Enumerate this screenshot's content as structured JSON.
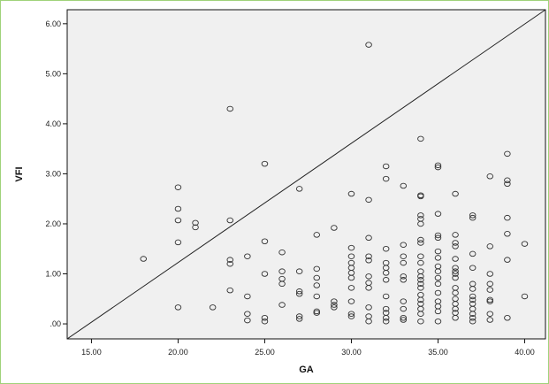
{
  "chart_data": {
    "type": "scatter",
    "title": "",
    "xlabel": "GA",
    "ylabel": "VFI",
    "xlim": [
      13.6,
      41.2
    ],
    "ylim": [
      -0.3,
      6.28
    ],
    "grid": false,
    "x_ticks": [
      15,
      20,
      25,
      30,
      35,
      40
    ],
    "x_tick_labels": [
      "15.00",
      "20.00",
      "25.00",
      "30.00",
      "35.00",
      "40.00"
    ],
    "y_ticks": [
      0,
      1,
      2,
      3,
      4,
      5,
      6
    ],
    "y_tick_labels": [
      ".00",
      "1.00",
      "2.00",
      "3.00",
      "4.00",
      "5.00",
      "6.00"
    ],
    "reference_line": {
      "type": "identity",
      "from": [
        13.6,
        -0.3
      ],
      "to": [
        41.2,
        6.28
      ]
    },
    "colors": {
      "plot_background": "#f0f0f0",
      "marker_stroke": "#333333",
      "frame_border": "#9fd27a"
    },
    "points": [
      {
        "x": 18,
        "y": 1.3
      },
      {
        "x": 20,
        "y": 2.73
      },
      {
        "x": 20,
        "y": 2.3
      },
      {
        "x": 20,
        "y": 2.07
      },
      {
        "x": 20,
        "y": 1.63
      },
      {
        "x": 20,
        "y": 0.33
      },
      {
        "x": 21,
        "y": 2.02
      },
      {
        "x": 21,
        "y": 1.93
      },
      {
        "x": 22,
        "y": 0.33
      },
      {
        "x": 23,
        "y": 4.3
      },
      {
        "x": 23,
        "y": 2.07
      },
      {
        "x": 23,
        "y": 1.28
      },
      {
        "x": 23,
        "y": 1.2
      },
      {
        "x": 23,
        "y": 0.67
      },
      {
        "x": 24,
        "y": 1.35
      },
      {
        "x": 24,
        "y": 0.55
      },
      {
        "x": 24,
        "y": 0.2
      },
      {
        "x": 24,
        "y": 0.07
      },
      {
        "x": 25,
        "y": 3.2
      },
      {
        "x": 25,
        "y": 1.65
      },
      {
        "x": 25,
        "y": 1.0
      },
      {
        "x": 25,
        "y": 0.12
      },
      {
        "x": 25,
        "y": 0.05
      },
      {
        "x": 26,
        "y": 1.43
      },
      {
        "x": 26,
        "y": 1.05
      },
      {
        "x": 26,
        "y": 0.9
      },
      {
        "x": 26,
        "y": 0.8
      },
      {
        "x": 26,
        "y": 0.38
      },
      {
        "x": 27,
        "y": 2.7
      },
      {
        "x": 27,
        "y": 1.05
      },
      {
        "x": 27,
        "y": 0.65
      },
      {
        "x": 27,
        "y": 0.6
      },
      {
        "x": 27,
        "y": 0.15
      },
      {
        "x": 27,
        "y": 0.1
      },
      {
        "x": 28,
        "y": 1.78
      },
      {
        "x": 28,
        "y": 1.1
      },
      {
        "x": 28,
        "y": 0.92
      },
      {
        "x": 28,
        "y": 0.77
      },
      {
        "x": 28,
        "y": 0.55
      },
      {
        "x": 28,
        "y": 0.25
      },
      {
        "x": 28,
        "y": 0.22
      },
      {
        "x": 29,
        "y": 1.92
      },
      {
        "x": 29,
        "y": 0.45
      },
      {
        "x": 29,
        "y": 0.38
      },
      {
        "x": 29,
        "y": 0.33
      },
      {
        "x": 30,
        "y": 2.6
      },
      {
        "x": 30,
        "y": 1.52
      },
      {
        "x": 30,
        "y": 1.35
      },
      {
        "x": 30,
        "y": 1.22
      },
      {
        "x": 30,
        "y": 1.12
      },
      {
        "x": 30,
        "y": 1.02
      },
      {
        "x": 30,
        "y": 0.92
      },
      {
        "x": 30,
        "y": 0.72
      },
      {
        "x": 30,
        "y": 0.45
      },
      {
        "x": 30,
        "y": 0.2
      },
      {
        "x": 30,
        "y": 0.15
      },
      {
        "x": 31,
        "y": 5.58
      },
      {
        "x": 31,
        "y": 2.48
      },
      {
        "x": 31,
        "y": 1.72
      },
      {
        "x": 31,
        "y": 1.35
      },
      {
        "x": 31,
        "y": 1.27
      },
      {
        "x": 31,
        "y": 0.95
      },
      {
        "x": 31,
        "y": 0.82
      },
      {
        "x": 31,
        "y": 0.72
      },
      {
        "x": 31,
        "y": 0.33
      },
      {
        "x": 31,
        "y": 0.15
      },
      {
        "x": 31,
        "y": 0.05
      },
      {
        "x": 32,
        "y": 3.15
      },
      {
        "x": 32,
        "y": 2.9
      },
      {
        "x": 32,
        "y": 1.5
      },
      {
        "x": 32,
        "y": 1.22
      },
      {
        "x": 32,
        "y": 1.12
      },
      {
        "x": 32,
        "y": 1.02
      },
      {
        "x": 32,
        "y": 0.88
      },
      {
        "x": 32,
        "y": 0.55
      },
      {
        "x": 32,
        "y": 0.3
      },
      {
        "x": 32,
        "y": 0.22
      },
      {
        "x": 32,
        "y": 0.12
      },
      {
        "x": 32,
        "y": 0.05
      },
      {
        "x": 33,
        "y": 2.76
      },
      {
        "x": 33,
        "y": 1.58
      },
      {
        "x": 33,
        "y": 1.35
      },
      {
        "x": 33,
        "y": 1.22
      },
      {
        "x": 33,
        "y": 0.95
      },
      {
        "x": 33,
        "y": 0.88
      },
      {
        "x": 33,
        "y": 0.45
      },
      {
        "x": 33,
        "y": 0.3
      },
      {
        "x": 33,
        "y": 0.12
      },
      {
        "x": 33,
        "y": 0.08
      },
      {
        "x": 34,
        "y": 3.7
      },
      {
        "x": 34,
        "y": 2.57
      },
      {
        "x": 34,
        "y": 2.55
      },
      {
        "x": 34,
        "y": 2.17
      },
      {
        "x": 34,
        "y": 2.1
      },
      {
        "x": 34,
        "y": 2.0
      },
      {
        "x": 34,
        "y": 1.68
      },
      {
        "x": 34,
        "y": 1.62
      },
      {
        "x": 34,
        "y": 1.35
      },
      {
        "x": 34,
        "y": 1.22
      },
      {
        "x": 34,
        "y": 1.05
      },
      {
        "x": 34,
        "y": 0.95
      },
      {
        "x": 34,
        "y": 0.88
      },
      {
        "x": 34,
        "y": 0.8
      },
      {
        "x": 34,
        "y": 0.72
      },
      {
        "x": 34,
        "y": 0.58
      },
      {
        "x": 34,
        "y": 0.48
      },
      {
        "x": 34,
        "y": 0.4
      },
      {
        "x": 34,
        "y": 0.3
      },
      {
        "x": 34,
        "y": 0.2
      },
      {
        "x": 34,
        "y": 0.05
      },
      {
        "x": 35,
        "y": 3.17
      },
      {
        "x": 35,
        "y": 3.13
      },
      {
        "x": 35,
        "y": 2.2
      },
      {
        "x": 35,
        "y": 1.77
      },
      {
        "x": 35,
        "y": 1.72
      },
      {
        "x": 35,
        "y": 1.45
      },
      {
        "x": 35,
        "y": 1.32
      },
      {
        "x": 35,
        "y": 1.15
      },
      {
        "x": 35,
        "y": 1.05
      },
      {
        "x": 35,
        "y": 0.92
      },
      {
        "x": 35,
        "y": 0.8
      },
      {
        "x": 35,
        "y": 0.62
      },
      {
        "x": 35,
        "y": 0.45
      },
      {
        "x": 35,
        "y": 0.35
      },
      {
        "x": 35,
        "y": 0.25
      },
      {
        "x": 35,
        "y": 0.05
      },
      {
        "x": 36,
        "y": 2.6
      },
      {
        "x": 36,
        "y": 1.78
      },
      {
        "x": 36,
        "y": 1.62
      },
      {
        "x": 36,
        "y": 1.55
      },
      {
        "x": 36,
        "y": 1.3
      },
      {
        "x": 36,
        "y": 1.12
      },
      {
        "x": 36,
        "y": 1.05
      },
      {
        "x": 36,
        "y": 1.0
      },
      {
        "x": 36,
        "y": 0.92
      },
      {
        "x": 36,
        "y": 0.72
      },
      {
        "x": 36,
        "y": 0.62
      },
      {
        "x": 36,
        "y": 0.5
      },
      {
        "x": 36,
        "y": 0.4
      },
      {
        "x": 36,
        "y": 0.3
      },
      {
        "x": 36,
        "y": 0.22
      },
      {
        "x": 36,
        "y": 0.12
      },
      {
        "x": 37,
        "y": 2.17
      },
      {
        "x": 37,
        "y": 2.12
      },
      {
        "x": 37,
        "y": 1.4
      },
      {
        "x": 37,
        "y": 1.12
      },
      {
        "x": 37,
        "y": 0.8
      },
      {
        "x": 37,
        "y": 0.7
      },
      {
        "x": 37,
        "y": 0.55
      },
      {
        "x": 37,
        "y": 0.48
      },
      {
        "x": 37,
        "y": 0.4
      },
      {
        "x": 37,
        "y": 0.3
      },
      {
        "x": 37,
        "y": 0.2
      },
      {
        "x": 37,
        "y": 0.12
      },
      {
        "x": 37,
        "y": 0.05
      },
      {
        "x": 38,
        "y": 2.95
      },
      {
        "x": 38,
        "y": 1.55
      },
      {
        "x": 38,
        "y": 1.0
      },
      {
        "x": 38,
        "y": 0.8
      },
      {
        "x": 38,
        "y": 0.68
      },
      {
        "x": 38,
        "y": 0.48
      },
      {
        "x": 38,
        "y": 0.45
      },
      {
        "x": 38,
        "y": 0.2
      },
      {
        "x": 38,
        "y": 0.08
      },
      {
        "x": 39,
        "y": 3.4
      },
      {
        "x": 39,
        "y": 2.87
      },
      {
        "x": 39,
        "y": 2.8
      },
      {
        "x": 39,
        "y": 2.12
      },
      {
        "x": 39,
        "y": 1.8
      },
      {
        "x": 39,
        "y": 1.28
      },
      {
        "x": 39,
        "y": 0.12
      },
      {
        "x": 40,
        "y": 1.6
      },
      {
        "x": 40,
        "y": 0.55
      }
    ]
  }
}
